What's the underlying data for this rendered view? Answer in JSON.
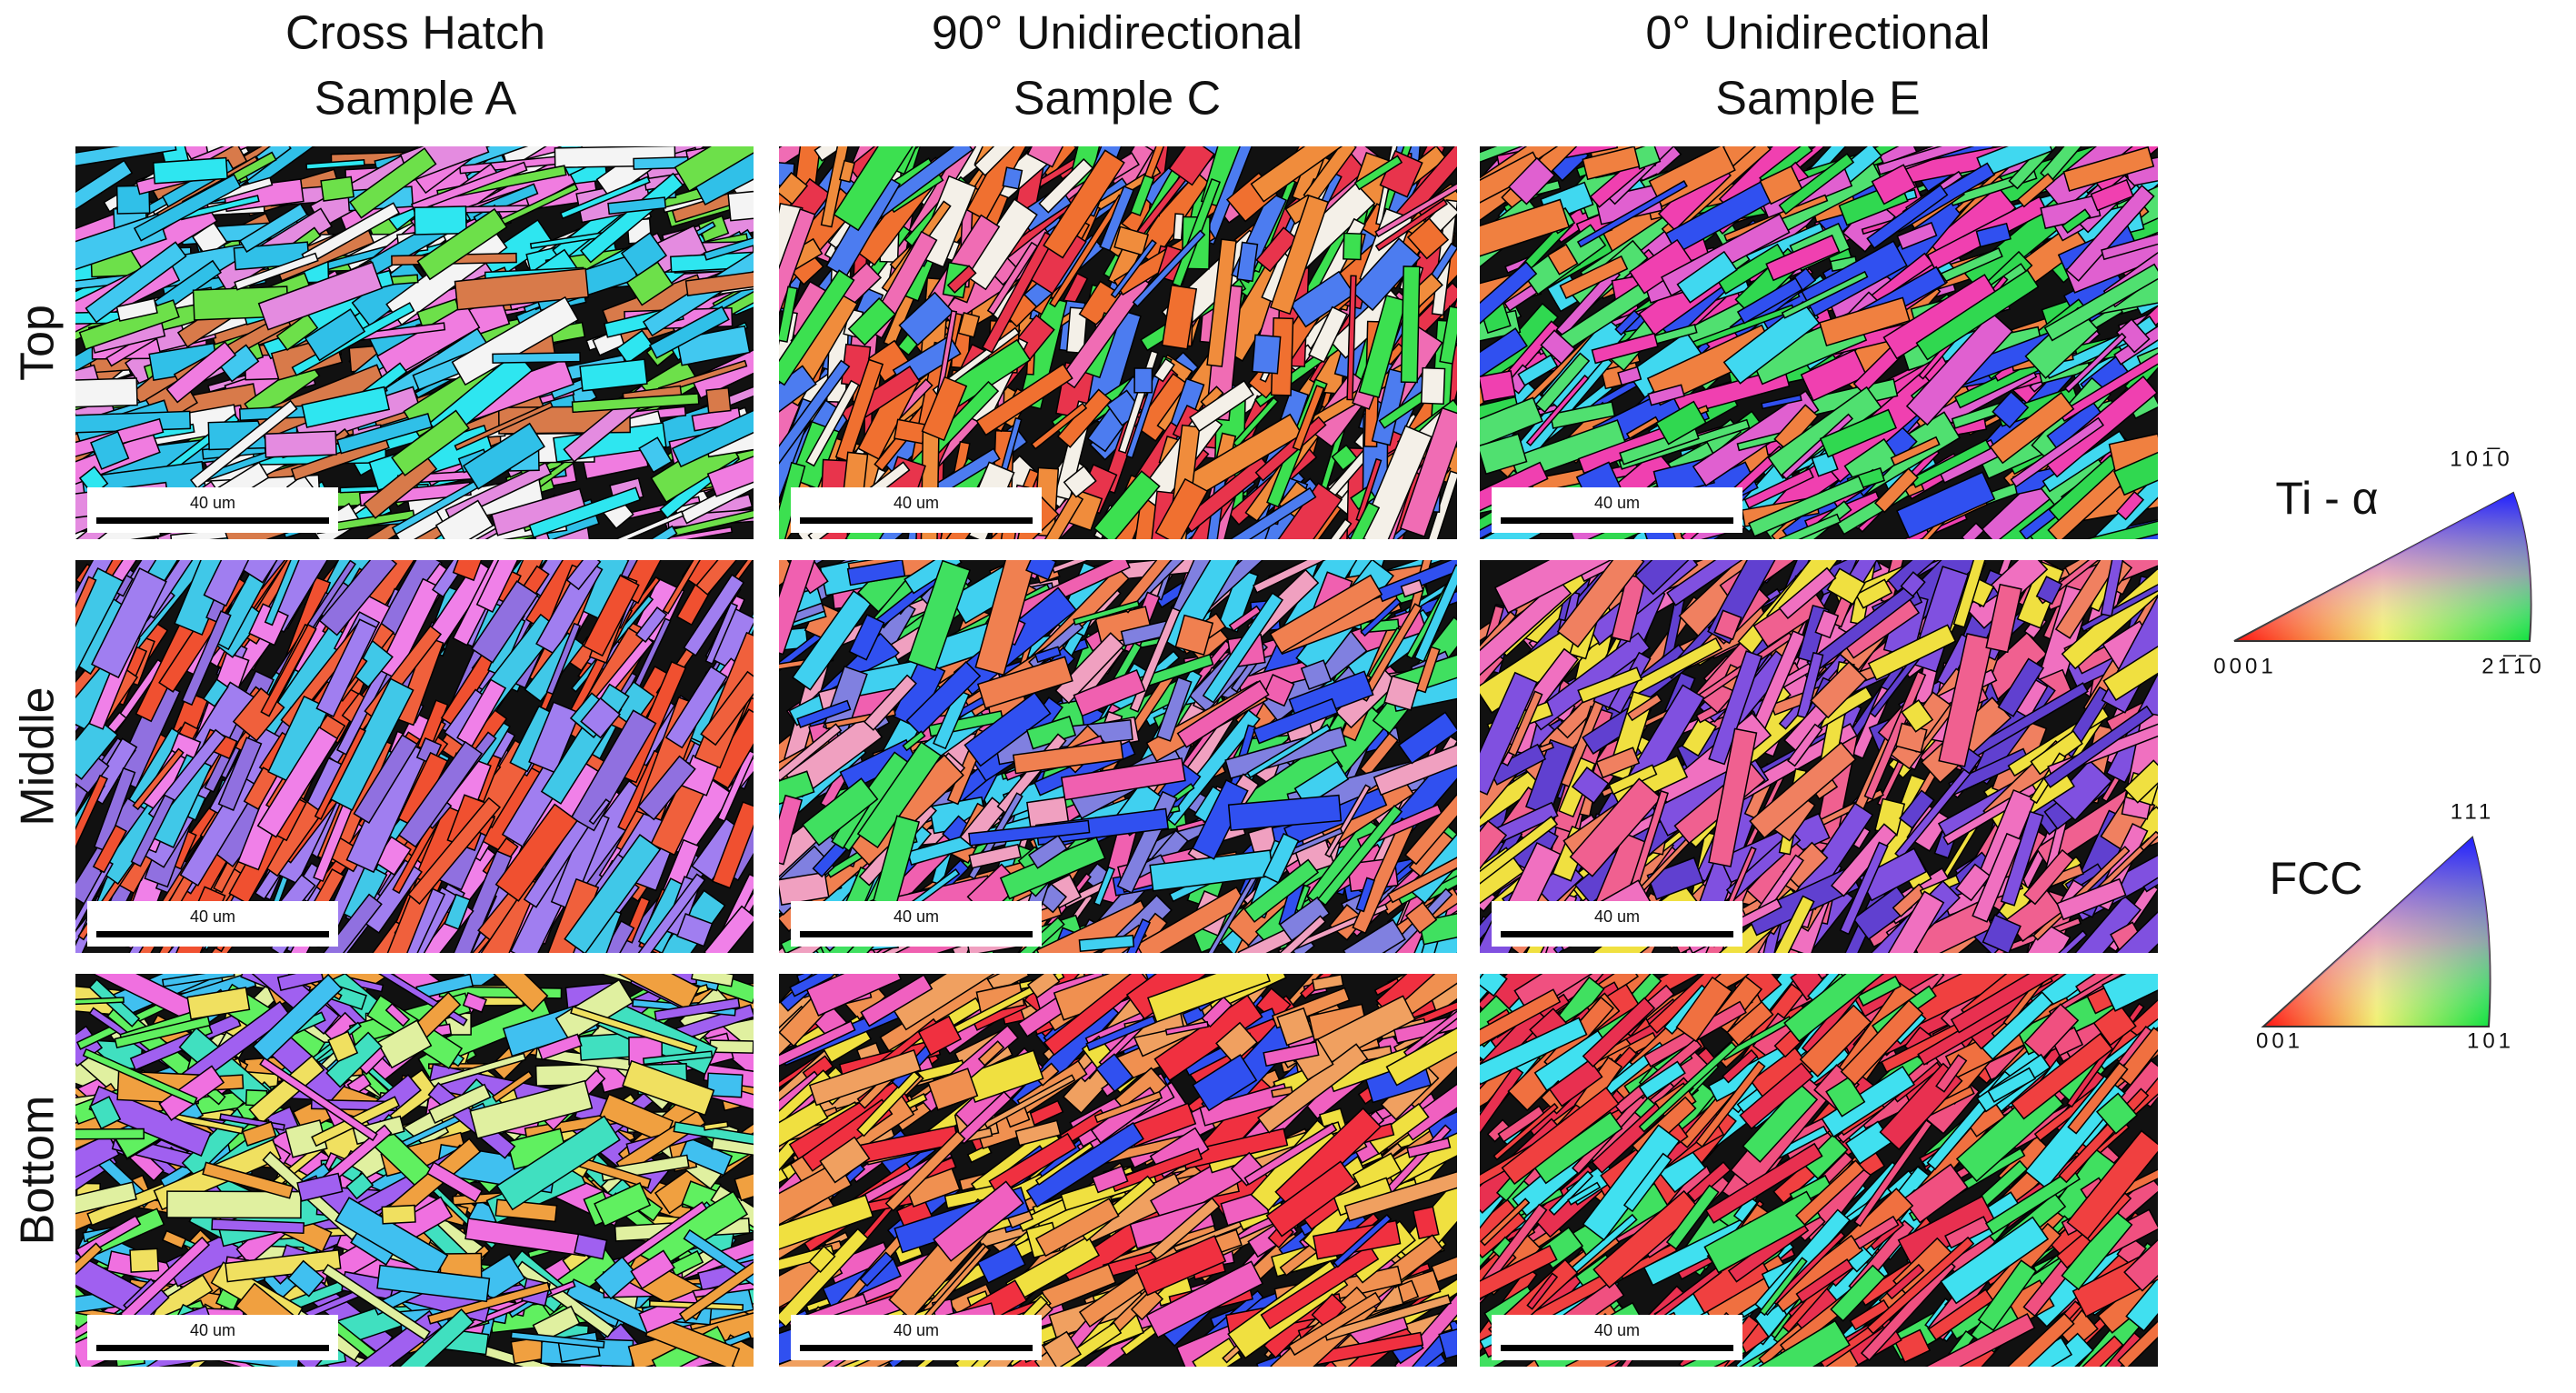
{
  "columns": [
    {
      "title": "Cross Hatch",
      "subtitle": "Sample A"
    },
    {
      "title": "90° Unidirectional",
      "subtitle": "Sample C"
    },
    {
      "title": "0° Unidirectional",
      "subtitle": "Sample E"
    }
  ],
  "rows": [
    "Top",
    "Middle",
    "Bottom"
  ],
  "panels": [
    [
      {
        "scale_bar": "40 um"
      },
      {
        "scale_bar": "40 um"
      },
      {
        "scale_bar": "40 um"
      }
    ],
    [
      {
        "scale_bar": "40 um"
      },
      {
        "scale_bar": "40 um"
      },
      {
        "scale_bar": "40 um"
      }
    ],
    [
      {
        "scale_bar": "40 um"
      },
      {
        "scale_bar": "40 um"
      },
      {
        "scale_bar": "40 um"
      }
    ]
  ],
  "legend_ti": {
    "title": "Ti - α",
    "top": "101̅0",
    "left": "0001",
    "right": "21̅1̅0"
  },
  "legend_fcc": {
    "title": "FCC",
    "top": "111",
    "left": "001",
    "right": "101"
  }
}
